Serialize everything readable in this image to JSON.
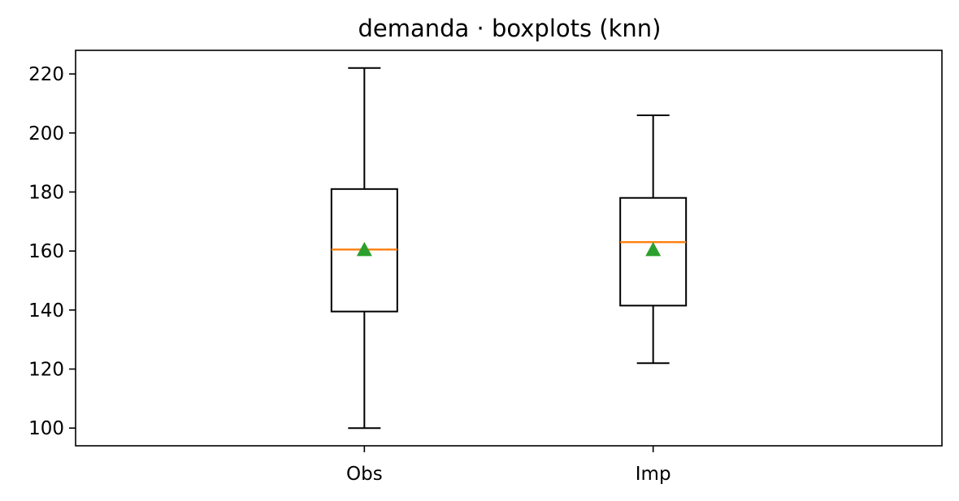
{
  "chart_data": {
    "type": "boxplot",
    "title": "demanda · boxplots (knn)",
    "xlabel": "",
    "ylabel": "",
    "categories": [
      "Obs",
      "Imp"
    ],
    "boxes": [
      {
        "category": "Obs",
        "whisker_low": 100,
        "q1": 139.5,
        "median": 160.5,
        "mean": 160.5,
        "q3": 181,
        "whisker_high": 222
      },
      {
        "category": "Imp",
        "whisker_low": 122,
        "q1": 141.5,
        "median": 163,
        "mean": 160.5,
        "q3": 178,
        "whisker_high": 206
      }
    ],
    "ylim": [
      94,
      228
    ],
    "yticks": [
      100,
      120,
      140,
      160,
      180,
      200,
      220
    ],
    "grid": false,
    "colors": {
      "box": "#000000",
      "median": "#ff7f0e",
      "mean": "#2ca02c"
    }
  }
}
